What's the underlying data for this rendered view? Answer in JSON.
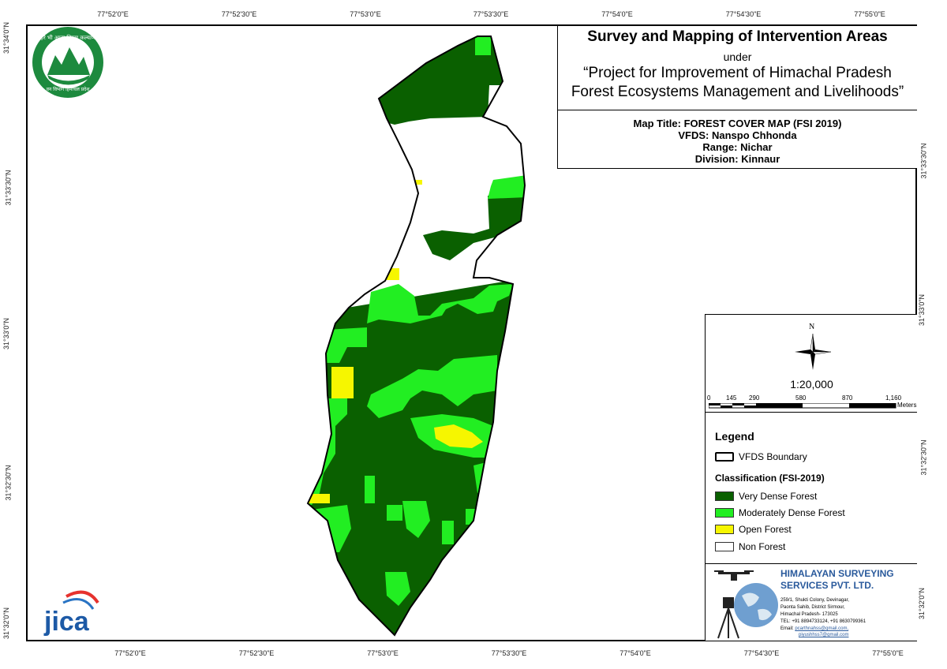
{
  "header": {
    "title": "Survey and Mapping of Intervention Areas",
    "under": "under",
    "project_line1": "“Project for Improvement of Himachal Pradesh",
    "project_line2": "Forest Ecosystems Management and Livelihoods”"
  },
  "map_info": {
    "map_title": "Map Title: FOREST COVER MAP (FSI 2019)",
    "vfds": "VFDS: Nanspo Chhonda",
    "range": "Range: Nichar",
    "division": "Division: Kinnaur"
  },
  "graticule": {
    "longitudes": [
      "77°52'0\"E",
      "77°52'30\"E",
      "77°53'0\"E",
      "77°53'30\"E",
      "77°54'0\"E",
      "77°54'30\"E",
      "77°55'0\"E"
    ],
    "latitudes": [
      "31°34'0\"N",
      "31°33'30\"N",
      "31°33'0\"N",
      "31°32'30\"N",
      "31°32'0\"N"
    ]
  },
  "scale": {
    "north_label": "N",
    "ratio": "1:20,000",
    "bar_labels": [
      "0",
      "145",
      "290",
      "580",
      "870",
      "1,160"
    ],
    "unit": "Meters"
  },
  "legend": {
    "title": "Legend",
    "boundary_label": "VFDS Boundary",
    "classification_title": "Classification (FSI-2019)",
    "classes": [
      {
        "label": "Very Dense Forest",
        "color": "#0a6000"
      },
      {
        "label": "Moderately Dense Forest",
        "color": "#22ee22"
      },
      {
        "label": "Open Forest",
        "color": "#f6f600"
      },
      {
        "label": "Non Forest",
        "color": "#ffffff"
      }
    ]
  },
  "company": {
    "name_line1": "HIMALAYAN SURVEYING",
    "name_line2": "SERVICES PVT. LTD.",
    "addr1": "259/1, Shukti Colony, Devinagar,",
    "addr2": "Paonta Sahib, District Sirmour,",
    "addr3": "Himachal Pradesh- 173025",
    "tel": "TEL: +91 8894733124, +91 8630799361",
    "email_label": "Email: ",
    "email1": "pcarthnahss@gmail.com,",
    "email2": "piyushhss7@gmail.com"
  },
  "logos": {
    "hp_forest_logo_text_top": "हरे भी आत्म  धिरख कल्याण",
    "hp_forest_logo_text_bottom": "वन विभाग हिमाचल प्रदेश",
    "jica_logo": "jica"
  },
  "colors": {
    "very_dense": "#0a6000",
    "moderately_dense": "#22ee22",
    "open": "#f6f600",
    "company_blue": "#2a5a9c",
    "hp_green": "#1d8a3e"
  }
}
